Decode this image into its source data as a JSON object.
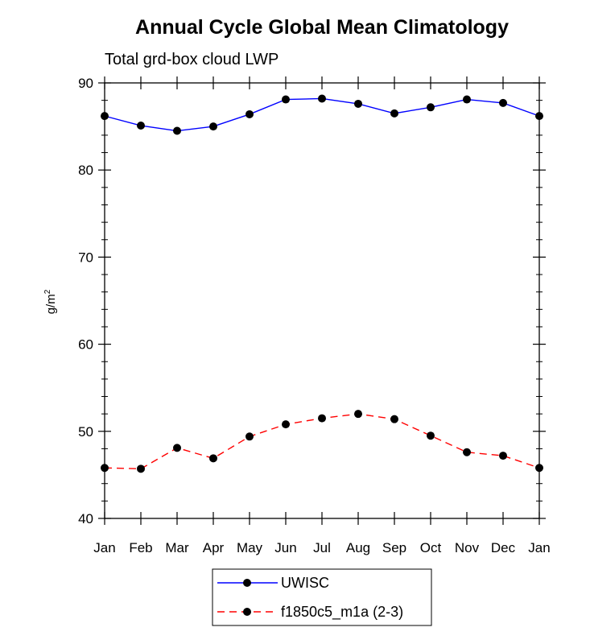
{
  "chart_data": {
    "type": "line",
    "title": "Annual Cycle Global Mean Climatology",
    "subtitle": "Total grd-box cloud LWP",
    "xlabel": "",
    "ylabel": "g/m",
    "ylabel_superscript": "2",
    "categories": [
      "Jan",
      "Feb",
      "Mar",
      "Apr",
      "May",
      "Jun",
      "Jul",
      "Aug",
      "Sep",
      "Oct",
      "Nov",
      "Dec",
      "Jan"
    ],
    "ylim": [
      40,
      90
    ],
    "yticks": [
      40,
      50,
      60,
      70,
      80,
      90
    ],
    "ytick_labels": [
      "40",
      "50",
      "60",
      "70",
      "80",
      "90"
    ],
    "series": [
      {
        "name": "UWISC",
        "color": "#0000ff",
        "dashed": false,
        "values": [
          86.2,
          85.1,
          84.5,
          85.0,
          86.4,
          88.1,
          88.2,
          87.6,
          86.5,
          87.2,
          88.1,
          87.7,
          86.2
        ]
      },
      {
        "name": "f1850c5_m1a (2-3)",
        "color": "#ff0000",
        "dashed": true,
        "values": [
          45.8,
          45.7,
          48.1,
          46.9,
          49.4,
          50.8,
          51.5,
          52.0,
          51.4,
          49.5,
          47.6,
          47.2,
          45.8
        ]
      }
    ],
    "legend_position": "bottom-center"
  }
}
